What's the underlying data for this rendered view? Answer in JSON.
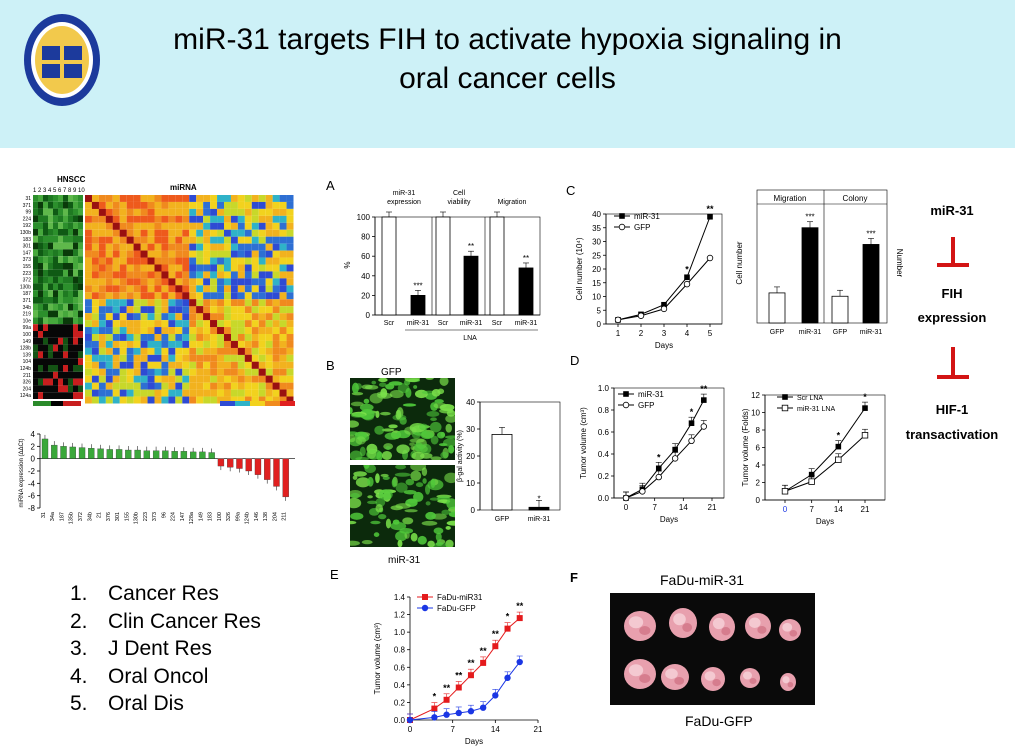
{
  "title_line1": "miR-31 targets FIH to activate hypoxia signaling in",
  "title_line2": "oral cancer cells",
  "logo": {
    "icon": "university-seal-icon"
  },
  "panels": {
    "A": "A",
    "B": "B",
    "C": "C",
    "D": "D",
    "E": "E",
    "F": "F"
  },
  "heatmap": {
    "hnscc_label": "HNSCC",
    "hnscc_columns": "1 2 3 4 5 6 7 8 9 10",
    "mirna_label": "miRNA",
    "row_labels": [
      "31",
      "371",
      "99",
      "224",
      "192",
      "130b",
      "183",
      "301",
      "147",
      "373",
      "155",
      "223",
      "372",
      "130b",
      "187",
      "371",
      "34b",
      "219",
      "10e",
      "99a",
      "100",
      "149",
      "128b",
      "139",
      "104",
      "124b",
      "211",
      "326",
      "204",
      "124a"
    ]
  },
  "references": [
    {
      "num": "1.",
      "text": "Cancer Res"
    },
    {
      "num": "2.",
      "text": "Clin Cancer Res"
    },
    {
      "num": "3.",
      "text": "J Dent Res"
    },
    {
      "num": "4.",
      "text": "Oral Oncol"
    },
    {
      "num": "5.",
      "text": "Oral Dis"
    }
  ],
  "pathway": {
    "top": "miR-31",
    "middle_line1": "FIH",
    "middle_line2": "expression",
    "bottom_line1": "HIF-1",
    "bottom_line2": "transactivation",
    "inhibit_color": "#d31414"
  },
  "photo_B": {
    "top_label": "GFP",
    "bottom_label": "miR-31"
  },
  "photo_F": {
    "top_label": "FaDu-miR-31",
    "bottom_label": "FaDu-GFP"
  },
  "chart_data": [
    {
      "id": "mirna-expression",
      "type": "bar",
      "ylabel": "miRNA expression (ΔΔCt)",
      "ylim": [
        -8,
        4
      ],
      "yticks": [
        4,
        2,
        0,
        -2,
        -4,
        -6,
        -8
      ],
      "categories": [
        "31",
        "34a",
        "187",
        "135b",
        "372",
        "34b",
        "21",
        "376",
        "301",
        "155",
        "130b",
        "223",
        "373",
        "96",
        "224",
        "147",
        "128a",
        "149",
        "183",
        "100",
        "326",
        "99a",
        "124b",
        "146",
        "138",
        "204",
        "211"
      ],
      "values": [
        3.2,
        2.2,
        2.0,
        1.9,
        1.8,
        1.7,
        1.6,
        1.5,
        1.5,
        1.4,
        1.4,
        1.3,
        1.3,
        1.3,
        1.2,
        1.2,
        1.1,
        1.1,
        1.0,
        -1.2,
        -1.4,
        -1.6,
        -2.0,
        -2.6,
        -3.4,
        -4.5,
        -6.2
      ],
      "colors": {
        "up": "#3aa83a",
        "down": "#e02020"
      }
    },
    {
      "id": "A",
      "type": "bar",
      "ylabel": "%",
      "ylim": [
        0,
        100
      ],
      "yticks": [
        0,
        20,
        40,
        60,
        80,
        100
      ],
      "groups": [
        "miR-31 expression",
        "Cell viability",
        "Migration"
      ],
      "categories": [
        "Scr",
        "miR-31",
        "Scr",
        "miR-31",
        "Scr",
        "miR-31"
      ],
      "values": [
        100,
        20,
        100,
        60,
        100,
        48
      ],
      "significance": [
        "",
        "***",
        "",
        "**",
        "",
        "**"
      ],
      "xgroup_label": "LNA"
    },
    {
      "id": "B",
      "type": "bar",
      "ylabel": "β-gal activity (%)",
      "ylim": [
        0,
        40
      ],
      "yticks": [
        0,
        10,
        20,
        30,
        40
      ],
      "categories": [
        "GFP",
        "miR-31"
      ],
      "values": [
        28,
        1
      ],
      "significance": [
        "",
        "*"
      ]
    },
    {
      "id": "C-growth",
      "type": "line",
      "ylabel": "Cell number (10⁴)",
      "xlabel": "Days",
      "xlim": [
        1,
        5
      ],
      "ylim": [
        0,
        40
      ],
      "xticks": [
        1,
        2,
        3,
        4,
        5
      ],
      "yticks": [
        0,
        5,
        10,
        15,
        20,
        25,
        30,
        35,
        40
      ],
      "series": [
        {
          "name": "miR-31",
          "x": [
            1,
            2,
            3,
            4,
            5
          ],
          "y": [
            1.5,
            3.5,
            7,
            17,
            39
          ]
        },
        {
          "name": "GFP",
          "x": [
            1,
            2,
            3,
            4,
            5
          ],
          "y": [
            1.5,
            3,
            5.5,
            14.5,
            24
          ]
        }
      ],
      "annotations": [
        {
          "x": 4,
          "text": "*"
        },
        {
          "x": 5,
          "text": "**"
        }
      ]
    },
    {
      "id": "C-bars",
      "type": "bar",
      "ylabel": "Cell number",
      "ylabel_right": "Number",
      "groups": [
        "Migration",
        "Colony"
      ],
      "categories": [
        "GFP",
        "miR-31",
        "GFP",
        "miR-31"
      ],
      "values": [
        18,
        57,
        16,
        47
      ],
      "ylim": [
        0,
        70
      ],
      "significance": [
        "",
        "***",
        "",
        "***"
      ]
    },
    {
      "id": "D-left",
      "type": "line",
      "ylabel": "Tumor volume (cm³)",
      "xlabel": "Days",
      "xlim": [
        0,
        21
      ],
      "ylim": [
        0,
        1.0
      ],
      "xticks": [
        0,
        7,
        14,
        21
      ],
      "yticks": [
        0.0,
        0.2,
        0.4,
        0.6,
        0.8,
        1.0
      ],
      "series": [
        {
          "name": "miR-31",
          "x": [
            0,
            4,
            8,
            12,
            16,
            19
          ],
          "y": [
            0.0,
            0.08,
            0.27,
            0.44,
            0.68,
            0.89
          ]
        },
        {
          "name": "GFP",
          "x": [
            0,
            4,
            8,
            12,
            16,
            19
          ],
          "y": [
            0.0,
            0.06,
            0.19,
            0.36,
            0.52,
            0.65
          ]
        }
      ],
      "annotations": [
        {
          "x": 8,
          "text": "*"
        },
        {
          "x": 16,
          "text": "*"
        },
        {
          "x": 19,
          "text": "**"
        }
      ]
    },
    {
      "id": "D-right",
      "type": "line",
      "ylabel": "Tumor volume (Folds)",
      "xlabel": "Days",
      "xlim": [
        0,
        21
      ],
      "ylim": [
        0,
        12
      ],
      "xticks": [
        0,
        7,
        14,
        21
      ],
      "yticks": [
        0,
        2,
        4,
        6,
        8,
        10,
        12
      ],
      "series": [
        {
          "name": "Scr LNA",
          "x": [
            0,
            7,
            14,
            21
          ],
          "y": [
            1,
            2.9,
            6.1,
            10.5
          ]
        },
        {
          "name": "miR-31 LNA",
          "x": [
            0,
            7,
            14,
            21
          ],
          "y": [
            1,
            2.1,
            4.6,
            7.4
          ]
        }
      ],
      "annotations": [
        {
          "x": 14,
          "text": "*"
        },
        {
          "x": 21,
          "text": "*"
        }
      ]
    },
    {
      "id": "E",
      "type": "line",
      "ylabel": "Tumor volume (cm³)",
      "xlabel": "Days",
      "xlim": [
        0,
        21
      ],
      "ylim": [
        0,
        1.4
      ],
      "xticks": [
        0,
        7,
        14,
        21
      ],
      "yticks": [
        0.0,
        0.2,
        0.4,
        0.6,
        0.8,
        1.0,
        1.2,
        1.4
      ],
      "series": [
        {
          "name": "FaDu-miR31",
          "color": "#e41a1c",
          "x": [
            0,
            4,
            6,
            8,
            10,
            12,
            14,
            16,
            18
          ],
          "y": [
            0.0,
            0.13,
            0.23,
            0.37,
            0.51,
            0.65,
            0.84,
            1.04,
            1.16
          ]
        },
        {
          "name": "FaDu-GFP",
          "color": "#1a36e4",
          "x": [
            0,
            4,
            6,
            8,
            10,
            12,
            14,
            16,
            18
          ],
          "y": [
            0.0,
            0.03,
            0.06,
            0.08,
            0.1,
            0.14,
            0.28,
            0.48,
            0.66
          ]
        }
      ],
      "annotations": [
        {
          "x": 4,
          "text": "*"
        },
        {
          "x": 6,
          "text": "**"
        },
        {
          "x": 8,
          "text": "**"
        },
        {
          "x": 10,
          "text": "**"
        },
        {
          "x": 12,
          "text": "**"
        },
        {
          "x": 14,
          "text": "**"
        },
        {
          "x": 16,
          "text": "*"
        },
        {
          "x": 18,
          "text": "**"
        }
      ]
    }
  ]
}
